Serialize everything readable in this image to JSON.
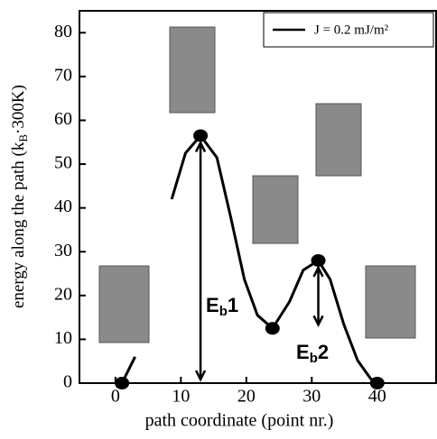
{
  "chart_data": {
    "type": "line",
    "x_label": "path coordinate (point nr.)",
    "y_label": [
      "energy along the path (k",
      "B",
      "·300K)"
    ],
    "xlim": [
      -5.5,
      49
    ],
    "xticks": [
      0,
      10,
      20,
      30,
      40
    ],
    "ylim": [
      0,
      85
    ],
    "yticks": [
      0,
      10,
      20,
      30,
      40,
      50,
      60,
      70,
      80
    ],
    "series": [
      {
        "name": "J = 0.2 mJ/m²",
        "color": "#000000",
        "x": [
          1,
          3,
          6.9,
          8.6,
          10.7,
          13,
          15.5,
          17.6,
          19.7,
          21.7,
          24,
          26.6,
          28.7,
          31,
          32.8,
          34.9,
          37,
          39,
          40
        ],
        "values": [
          0,
          6,
          null,
          42,
          52.5,
          56.5,
          51.5,
          38,
          23.7,
          15.5,
          12.5,
          18.6,
          25.8,
          28,
          23.7,
          13.4,
          5.2,
          1,
          0
        ]
      }
    ],
    "points": {
      "x": [
        1,
        13,
        24,
        31,
        40
      ],
      "values": [
        0,
        56.5,
        12.5,
        28,
        0
      ],
      "color": "#000000"
    },
    "annotations": [
      [
        "E",
        "b",
        "1"
      ],
      [
        "E",
        "b",
        "2"
      ]
    ]
  }
}
